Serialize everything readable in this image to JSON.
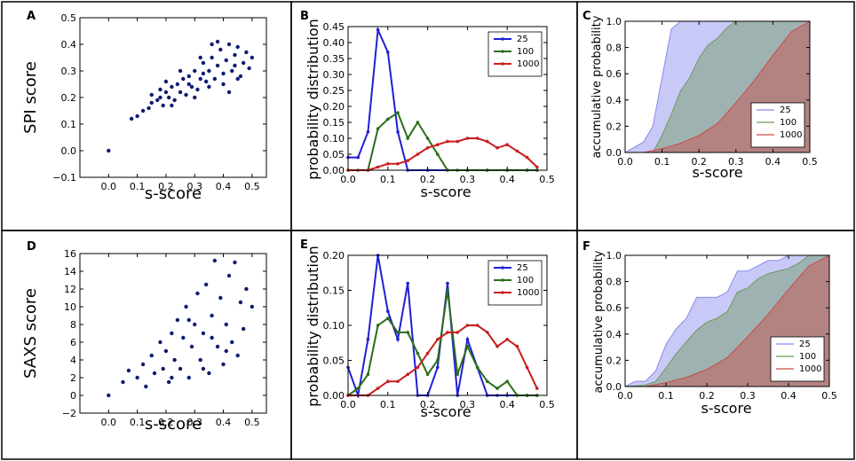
{
  "chart_data": [
    {
      "id": "A",
      "panel_label": "A",
      "type": "scatter",
      "xlabel": "s-score",
      "ylabel": "SPI score",
      "xlim": [
        -0.1,
        0.55
      ],
      "ylim": [
        -0.1,
        0.5
      ],
      "xticks": [
        0.0,
        0.1,
        0.2,
        0.3,
        0.4,
        0.5
      ],
      "yticks": [
        -0.1,
        0.0,
        0.1,
        0.2,
        0.3,
        0.4,
        0.5
      ],
      "xtick_labels": [
        "0.0",
        "0.1",
        "0.2",
        "0.3",
        "0.4",
        "0.5"
      ],
      "ytick_labels": [
        "−0.1",
        "0.0",
        "0.1",
        "0.2",
        "0.3",
        "0.4",
        "0.5"
      ],
      "color": "#0b1a6e",
      "points": [
        [
          0.0,
          0.0
        ],
        [
          0.08,
          0.12
        ],
        [
          0.1,
          0.13
        ],
        [
          0.12,
          0.15
        ],
        [
          0.14,
          0.16
        ],
        [
          0.15,
          0.18
        ],
        [
          0.17,
          0.19
        ],
        [
          0.18,
          0.2
        ],
        [
          0.19,
          0.17
        ],
        [
          0.2,
          0.22
        ],
        [
          0.21,
          0.2
        ],
        [
          0.22,
          0.24
        ],
        [
          0.23,
          0.19
        ],
        [
          0.24,
          0.25
        ],
        [
          0.25,
          0.22
        ],
        [
          0.26,
          0.27
        ],
        [
          0.27,
          0.21
        ],
        [
          0.28,
          0.28
        ],
        [
          0.29,
          0.24
        ],
        [
          0.3,
          0.3
        ],
        [
          0.31,
          0.23
        ],
        [
          0.32,
          0.27
        ],
        [
          0.33,
          0.33
        ],
        [
          0.34,
          0.26
        ],
        [
          0.35,
          0.3
        ],
        [
          0.36,
          0.35
        ],
        [
          0.37,
          0.27
        ],
        [
          0.38,
          0.32
        ],
        [
          0.39,
          0.38
        ],
        [
          0.4,
          0.29
        ],
        [
          0.41,
          0.34
        ],
        [
          0.42,
          0.4
        ],
        [
          0.43,
          0.3
        ],
        [
          0.44,
          0.36
        ],
        [
          0.45,
          0.39
        ],
        [
          0.46,
          0.28
        ],
        [
          0.47,
          0.33
        ],
        [
          0.48,
          0.37
        ],
        [
          0.49,
          0.31
        ],
        [
          0.5,
          0.35
        ],
        [
          0.36,
          0.4
        ],
        [
          0.38,
          0.41
        ],
        [
          0.25,
          0.3
        ],
        [
          0.2,
          0.26
        ],
        [
          0.15,
          0.21
        ],
        [
          0.3,
          0.2
        ],
        [
          0.35,
          0.24
        ],
        [
          0.4,
          0.25
        ],
        [
          0.45,
          0.27
        ],
        [
          0.42,
          0.22
        ],
        [
          0.28,
          0.25
        ],
        [
          0.33,
          0.29
        ],
        [
          0.22,
          0.17
        ],
        [
          0.18,
          0.23
        ],
        [
          0.32,
          0.35
        ],
        [
          0.44,
          0.32
        ]
      ]
    },
    {
      "id": "B",
      "panel_label": "B",
      "type": "line",
      "xlabel": "s-score",
      "ylabel": "probability distribution",
      "xlim": [
        0.0,
        0.5
      ],
      "ylim": [
        0.0,
        0.45
      ],
      "xticks": [
        0.0,
        0.1,
        0.2,
        0.3,
        0.4,
        0.5
      ],
      "yticks": [
        0.0,
        0.05,
        0.1,
        0.15,
        0.2,
        0.25,
        0.3,
        0.35,
        0.4,
        0.45
      ],
      "xtick_labels": [
        "0.0",
        "0.1",
        "0.2",
        "0.3",
        "0.4",
        "0.5"
      ],
      "ytick_labels": [
        "0.00",
        "0.05",
        "0.10",
        "0.15",
        "0.20",
        "0.25",
        "0.30",
        "0.35",
        "0.40",
        "0.45"
      ],
      "legend": "top-right",
      "series": [
        {
          "name": "25",
          "color": "#1f1fd6",
          "x": [
            0.0,
            0.025,
            0.05,
            0.075,
            0.1,
            0.125,
            0.15,
            0.2,
            0.25,
            0.3,
            0.35,
            0.4,
            0.45,
            0.475
          ],
          "y": [
            0.04,
            0.04,
            0.12,
            0.44,
            0.37,
            0.12,
            0.0,
            0.0,
            0.0,
            0.0,
            0.0,
            0.0,
            0.0,
            0.0
          ]
        },
        {
          "name": "100",
          "color": "#2a6e1a",
          "x": [
            0.0,
            0.025,
            0.05,
            0.075,
            0.1,
            0.125,
            0.15,
            0.175,
            0.2,
            0.225,
            0.25,
            0.275,
            0.3,
            0.35,
            0.4,
            0.45,
            0.475
          ],
          "y": [
            0.0,
            0.0,
            0.0,
            0.13,
            0.16,
            0.18,
            0.1,
            0.15,
            0.1,
            0.05,
            0.0,
            0.0,
            0.0,
            0.0,
            0.0,
            0.0,
            0.0
          ]
        },
        {
          "name": "1000",
          "color": "#c81e1e",
          "x": [
            0.0,
            0.05,
            0.075,
            0.1,
            0.125,
            0.15,
            0.175,
            0.2,
            0.225,
            0.25,
            0.275,
            0.3,
            0.325,
            0.35,
            0.375,
            0.4,
            0.425,
            0.45,
            0.475
          ],
          "y": [
            0.0,
            0.0,
            0.01,
            0.02,
            0.02,
            0.03,
            0.05,
            0.07,
            0.08,
            0.09,
            0.09,
            0.1,
            0.1,
            0.09,
            0.07,
            0.08,
            0.06,
            0.04,
            0.01
          ]
        }
      ]
    },
    {
      "id": "C",
      "panel_label": "C",
      "type": "area",
      "xlabel": "s-score",
      "ylabel": "accumulative probability",
      "xlim": [
        0.0,
        0.5
      ],
      "ylim": [
        0.0,
        1.0
      ],
      "xticks": [
        0.0,
        0.1,
        0.2,
        0.3,
        0.4,
        0.5
      ],
      "yticks": [
        0.0,
        0.2,
        0.4,
        0.6,
        0.8,
        1.0
      ],
      "xtick_labels": [
        "0.0",
        "0.1",
        "0.2",
        "0.3",
        "0.4",
        "0.5"
      ],
      "ytick_labels": [
        "0.0",
        "0.2",
        "0.4",
        "0.6",
        "0.8",
        "1.0"
      ],
      "legend": "bottom-right",
      "series": [
        {
          "name": "25",
          "color": "#8888ee",
          "x": [
            0.0,
            0.025,
            0.05,
            0.075,
            0.1,
            0.125,
            0.15,
            0.5
          ],
          "y": [
            0.0,
            0.04,
            0.08,
            0.2,
            0.57,
            0.94,
            1.0,
            1.0
          ]
        },
        {
          "name": "100",
          "color": "#6a9a5a",
          "x": [
            0.0,
            0.05,
            0.075,
            0.1,
            0.125,
            0.15,
            0.175,
            0.2,
            0.225,
            0.25,
            0.275,
            0.3,
            0.5
          ],
          "y": [
            0.0,
            0.0,
            0.0,
            0.13,
            0.29,
            0.47,
            0.57,
            0.72,
            0.82,
            0.87,
            0.95,
            1.0,
            1.0
          ]
        },
        {
          "name": "1000",
          "color": "#cc4a4a",
          "x": [
            0.0,
            0.05,
            0.1,
            0.15,
            0.2,
            0.25,
            0.3,
            0.35,
            0.4,
            0.45,
            0.5
          ],
          "y": [
            0.0,
            0.0,
            0.03,
            0.07,
            0.13,
            0.22,
            0.38,
            0.55,
            0.74,
            0.92,
            1.0
          ]
        }
      ]
    },
    {
      "id": "D",
      "panel_label": "D",
      "type": "scatter",
      "xlabel": "s-score",
      "ylabel": "SAXS score",
      "xlim": [
        -0.1,
        0.55
      ],
      "ylim": [
        -2,
        16
      ],
      "xticks": [
        0.0,
        0.1,
        0.2,
        0.3,
        0.4,
        0.5
      ],
      "yticks": [
        -2,
        0,
        2,
        4,
        6,
        8,
        10,
        12,
        14,
        16
      ],
      "xtick_labels": [
        "0.0",
        "0.1",
        "0.2",
        "0.3",
        "0.4",
        "0.5"
      ],
      "ytick_labels": [
        "−2",
        "0",
        "2",
        "4",
        "6",
        "8",
        "10",
        "12",
        "14",
        "16"
      ],
      "color": "#0b1a6e",
      "points": [
        [
          0.0,
          0.0
        ],
        [
          0.05,
          1.5
        ],
        [
          0.07,
          2.8
        ],
        [
          0.1,
          2.0
        ],
        [
          0.12,
          3.5
        ],
        [
          0.13,
          1.0
        ],
        [
          0.15,
          4.5
        ],
        [
          0.16,
          2.5
        ],
        [
          0.18,
          6.0
        ],
        [
          0.19,
          3.0
        ],
        [
          0.2,
          5.0
        ],
        [
          0.21,
          1.5
        ],
        [
          0.22,
          7.0
        ],
        [
          0.23,
          4.0
        ],
        [
          0.24,
          8.5
        ],
        [
          0.25,
          3.0
        ],
        [
          0.26,
          6.5
        ],
        [
          0.27,
          10.0
        ],
        [
          0.28,
          2.0
        ],
        [
          0.29,
          5.5
        ],
        [
          0.3,
          8.0
        ],
        [
          0.31,
          11.5
        ],
        [
          0.32,
          4.0
        ],
        [
          0.33,
          7.0
        ],
        [
          0.34,
          12.5
        ],
        [
          0.35,
          2.5
        ],
        [
          0.36,
          9.0
        ],
        [
          0.37,
          15.2
        ],
        [
          0.38,
          5.5
        ],
        [
          0.39,
          11.0
        ],
        [
          0.4,
          3.5
        ],
        [
          0.41,
          8.0
        ],
        [
          0.42,
          13.5
        ],
        [
          0.43,
          6.0
        ],
        [
          0.44,
          15.0
        ],
        [
          0.45,
          4.5
        ],
        [
          0.46,
          10.5
        ],
        [
          0.47,
          7.5
        ],
        [
          0.48,
          12.0
        ],
        [
          0.5,
          10.0
        ],
        [
          0.33,
          3.0
        ],
        [
          0.28,
          8.5
        ],
        [
          0.22,
          2.0
        ],
        [
          0.36,
          6.5
        ],
        [
          0.41,
          5.0
        ]
      ]
    },
    {
      "id": "E",
      "panel_label": "E",
      "type": "line",
      "xlabel": "s-score",
      "ylabel": "probability distribution",
      "xlim": [
        0.0,
        0.5
      ],
      "ylim": [
        0.0,
        0.2
      ],
      "xticks": [
        0.0,
        0.1,
        0.2,
        0.3,
        0.4,
        0.5
      ],
      "yticks": [
        0.0,
        0.05,
        0.1,
        0.15,
        0.2
      ],
      "xtick_labels": [
        "0.0",
        "0.1",
        "0.2",
        "0.3",
        "0.4",
        "0.5"
      ],
      "ytick_labels": [
        "0.00",
        "0.05",
        "0.10",
        "0.15",
        "0.20"
      ],
      "legend": "top-right",
      "series": [
        {
          "name": "25",
          "color": "#1f1fd6",
          "x": [
            0.0,
            0.025,
            0.05,
            0.075,
            0.1,
            0.125,
            0.15,
            0.175,
            0.2,
            0.225,
            0.25,
            0.275,
            0.3,
            0.325,
            0.35,
            0.375,
            0.4,
            0.45,
            0.475
          ],
          "y": [
            0.04,
            0.0,
            0.08,
            0.2,
            0.12,
            0.08,
            0.16,
            0.0,
            0.0,
            0.04,
            0.16,
            0.0,
            0.08,
            0.04,
            0.0,
            0.0,
            0.0,
            0.0,
            0.0
          ]
        },
        {
          "name": "100",
          "color": "#2a6e1a",
          "x": [
            0.0,
            0.025,
            0.05,
            0.075,
            0.1,
            0.125,
            0.15,
            0.175,
            0.2,
            0.225,
            0.25,
            0.275,
            0.3,
            0.325,
            0.35,
            0.375,
            0.4,
            0.425,
            0.45,
            0.475
          ],
          "y": [
            0.0,
            0.01,
            0.03,
            0.1,
            0.11,
            0.09,
            0.09,
            0.06,
            0.03,
            0.05,
            0.15,
            0.03,
            0.07,
            0.04,
            0.02,
            0.01,
            0.02,
            0.0,
            0.0,
            0.0
          ]
        },
        {
          "name": "1000",
          "color": "#c81e1e",
          "x": [
            0.0,
            0.05,
            0.075,
            0.1,
            0.125,
            0.15,
            0.175,
            0.2,
            0.225,
            0.25,
            0.275,
            0.3,
            0.325,
            0.35,
            0.375,
            0.4,
            0.425,
            0.45,
            0.475
          ],
          "y": [
            0.0,
            0.0,
            0.01,
            0.02,
            0.02,
            0.03,
            0.04,
            0.06,
            0.08,
            0.09,
            0.09,
            0.1,
            0.1,
            0.09,
            0.07,
            0.08,
            0.07,
            0.04,
            0.01
          ]
        }
      ]
    },
    {
      "id": "F",
      "panel_label": "F",
      "type": "area",
      "xlabel": "s-score",
      "ylabel": "accumulative probability",
      "xlim": [
        0.0,
        0.5
      ],
      "ylim": [
        0.0,
        1.0
      ],
      "xticks": [
        0.0,
        0.1,
        0.2,
        0.3,
        0.4,
        0.5
      ],
      "yticks": [
        0.0,
        0.2,
        0.4,
        0.6,
        0.8,
        1.0
      ],
      "xtick_labels": [
        "0.0",
        "0.1",
        "0.2",
        "0.3",
        "0.4",
        "0.5"
      ],
      "ytick_labels": [
        "0.0",
        "0.2",
        "0.4",
        "0.6",
        "0.8",
        "1.0"
      ],
      "legend": "bottom-right",
      "series": [
        {
          "name": "25",
          "color": "#8888ee",
          "x": [
            0.0,
            0.025,
            0.05,
            0.075,
            0.1,
            0.125,
            0.15,
            0.175,
            0.2,
            0.225,
            0.25,
            0.275,
            0.3,
            0.325,
            0.35,
            0.375,
            0.4,
            0.5
          ],
          "y": [
            0.0,
            0.04,
            0.04,
            0.12,
            0.32,
            0.44,
            0.52,
            0.68,
            0.68,
            0.68,
            0.72,
            0.88,
            0.88,
            0.92,
            0.96,
            0.96,
            1.0,
            1.0
          ]
        },
        {
          "name": "100",
          "color": "#6a9a5a",
          "x": [
            0.0,
            0.05,
            0.075,
            0.1,
            0.125,
            0.15,
            0.175,
            0.2,
            0.225,
            0.25,
            0.275,
            0.3,
            0.325,
            0.35,
            0.375,
            0.4,
            0.425,
            0.45,
            0.5
          ],
          "y": [
            0.0,
            0.01,
            0.04,
            0.14,
            0.25,
            0.34,
            0.43,
            0.49,
            0.52,
            0.57,
            0.72,
            0.75,
            0.82,
            0.86,
            0.88,
            0.9,
            0.94,
            1.0,
            1.0
          ]
        },
        {
          "name": "1000",
          "color": "#cc4a4a",
          "x": [
            0.0,
            0.05,
            0.1,
            0.15,
            0.2,
            0.25,
            0.3,
            0.35,
            0.4,
            0.45,
            0.5
          ],
          "y": [
            0.0,
            0.0,
            0.03,
            0.07,
            0.13,
            0.22,
            0.38,
            0.55,
            0.74,
            0.92,
            1.0
          ]
        }
      ]
    }
  ]
}
